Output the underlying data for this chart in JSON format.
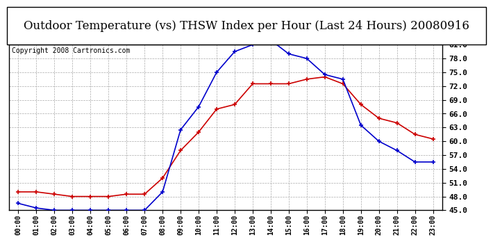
{
  "title": "Outdoor Temperature (vs) THSW Index per Hour (Last 24 Hours) 20080916",
  "copyright": "Copyright 2008 Cartronics.com",
  "hours": [
    "00:00",
    "01:00",
    "02:00",
    "03:00",
    "04:00",
    "05:00",
    "06:00",
    "07:00",
    "08:00",
    "09:00",
    "10:00",
    "11:00",
    "12:00",
    "13:00",
    "14:00",
    "15:00",
    "16:00",
    "17:00",
    "18:00",
    "19:00",
    "20:00",
    "21:00",
    "22:00",
    "23:00"
  ],
  "temp": [
    49.0,
    49.0,
    48.5,
    48.0,
    48.0,
    48.0,
    48.5,
    48.5,
    52.0,
    58.0,
    62.0,
    67.0,
    68.0,
    72.5,
    72.5,
    72.5,
    73.5,
    74.0,
    72.5,
    68.0,
    65.0,
    64.0,
    61.5,
    60.5
  ],
  "thsw": [
    46.5,
    45.5,
    45.0,
    45.0,
    45.0,
    45.0,
    45.0,
    45.0,
    49.0,
    62.5,
    67.5,
    75.0,
    79.5,
    81.0,
    82.0,
    79.0,
    78.0,
    74.5,
    73.5,
    63.5,
    60.0,
    58.0,
    55.5,
    55.5
  ],
  "temp_color": "#cc0000",
  "thsw_color": "#0000cc",
  "ylim": [
    45.0,
    81.0
  ],
  "yticks": [
    45.0,
    48.0,
    51.0,
    54.0,
    57.0,
    60.0,
    63.0,
    66.0,
    69.0,
    72.0,
    75.0,
    78.0,
    81.0
  ],
  "bg_color": "#ffffff",
  "grid_color": "#aaaaaa",
  "title_fontsize": 12,
  "copyright_fontsize": 7
}
